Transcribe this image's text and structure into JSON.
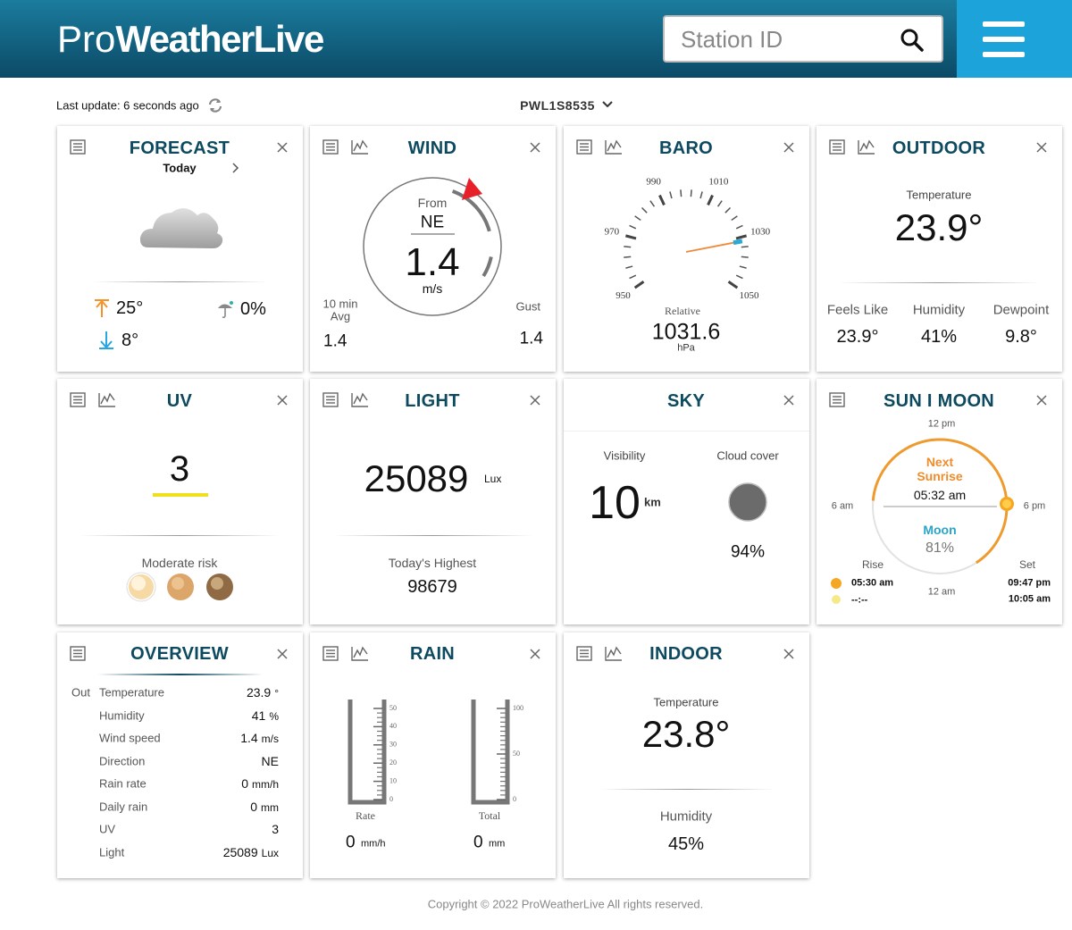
{
  "header": {
    "logo_pro": "Pro",
    "logo_brand": "WeatherLive",
    "search_placeholder": "Station ID"
  },
  "status": {
    "last_update": "Last update: 6 seconds ago",
    "station_id": "PWL1S8535"
  },
  "cards": {
    "forecast": {
      "title": "FORECAST",
      "day": "Today",
      "high": "25°",
      "precip": "0%",
      "low": "8°"
    },
    "wind": {
      "title": "WIND",
      "from_label": "From",
      "direction": "NE",
      "speed": "1.4",
      "unit": "m/s",
      "avg_label": [
        "10 min",
        "Avg"
      ],
      "avg": "1.4",
      "gust_label": "Gust",
      "gust": "1.4"
    },
    "baro": {
      "title": "BARO",
      "ticks": [
        950,
        970,
        990,
        1010,
        1030,
        1050
      ],
      "relative_label": "Relative",
      "value": 1031.6,
      "unit": "hPa"
    },
    "outdoor": {
      "title": "OUTDOOR",
      "temp_label": "Temperature",
      "temp": "23.9°",
      "feels_label": "Feels Like",
      "feels": "23.9°",
      "humidity_label": "Humidity",
      "humidity": "41%",
      "dewpoint_label": "Dewpoint",
      "dewpoint": "9.8°"
    },
    "uv": {
      "title": "UV",
      "value": "3",
      "risk": "Moderate risk"
    },
    "light": {
      "title": "LIGHT",
      "value": "25089",
      "unit": "Lux",
      "highest_label": "Today's Highest",
      "highest": "98679"
    },
    "sky": {
      "title": "SKY",
      "visibility_label": "Visibility",
      "visibility": "10",
      "visibility_unit": "km",
      "cloud_label": "Cloud cover",
      "cloud": "94%"
    },
    "sun_moon": {
      "title": "SUN I MOON",
      "noon": "12 pm",
      "morning": "6 am",
      "evening": "6 pm",
      "midnight": "12 am",
      "next_label": "Next",
      "event": "Sunrise",
      "event_time": "05:32 am",
      "moon_label": "Moon",
      "moon": "81%",
      "rise_label": "Rise",
      "set_label": "Set",
      "sun_rise": "05:30 am",
      "sun_set": "09:47 pm",
      "moon_rise": "--:--",
      "moon_set": "10:05 am"
    },
    "overview": {
      "title": "OVERVIEW",
      "section": "Out",
      "rows": [
        [
          "Temperature",
          "23.9",
          "°"
        ],
        [
          "Humidity",
          "41",
          "%"
        ],
        [
          "Wind speed",
          "1.4",
          "m/s"
        ],
        [
          "Direction",
          "NE"
        ],
        [
          "Rain rate",
          "0",
          "mm/h"
        ],
        [
          "Daily rain",
          "0",
          "mm"
        ],
        [
          "UV",
          "3"
        ],
        [
          "Light",
          "25089",
          "Lux"
        ]
      ]
    },
    "rain": {
      "title": "RAIN",
      "rate_ticks": [
        0,
        10,
        20,
        30,
        40,
        50
      ],
      "total_ticks": [
        0,
        50,
        100
      ],
      "rate_label": "Rate",
      "rate": 0,
      "rate_unit": "mm/h",
      "total_label": "Total",
      "total": 0,
      "total_unit": "mm"
    },
    "indoor": {
      "title": "INDOOR",
      "temp_label": "Temperature",
      "temp": "23.8°",
      "humidity_label": "Humidity",
      "humidity": "45%"
    }
  },
  "footer": "Copyright © 2022 ProWeatherLive All rights reserved."
}
